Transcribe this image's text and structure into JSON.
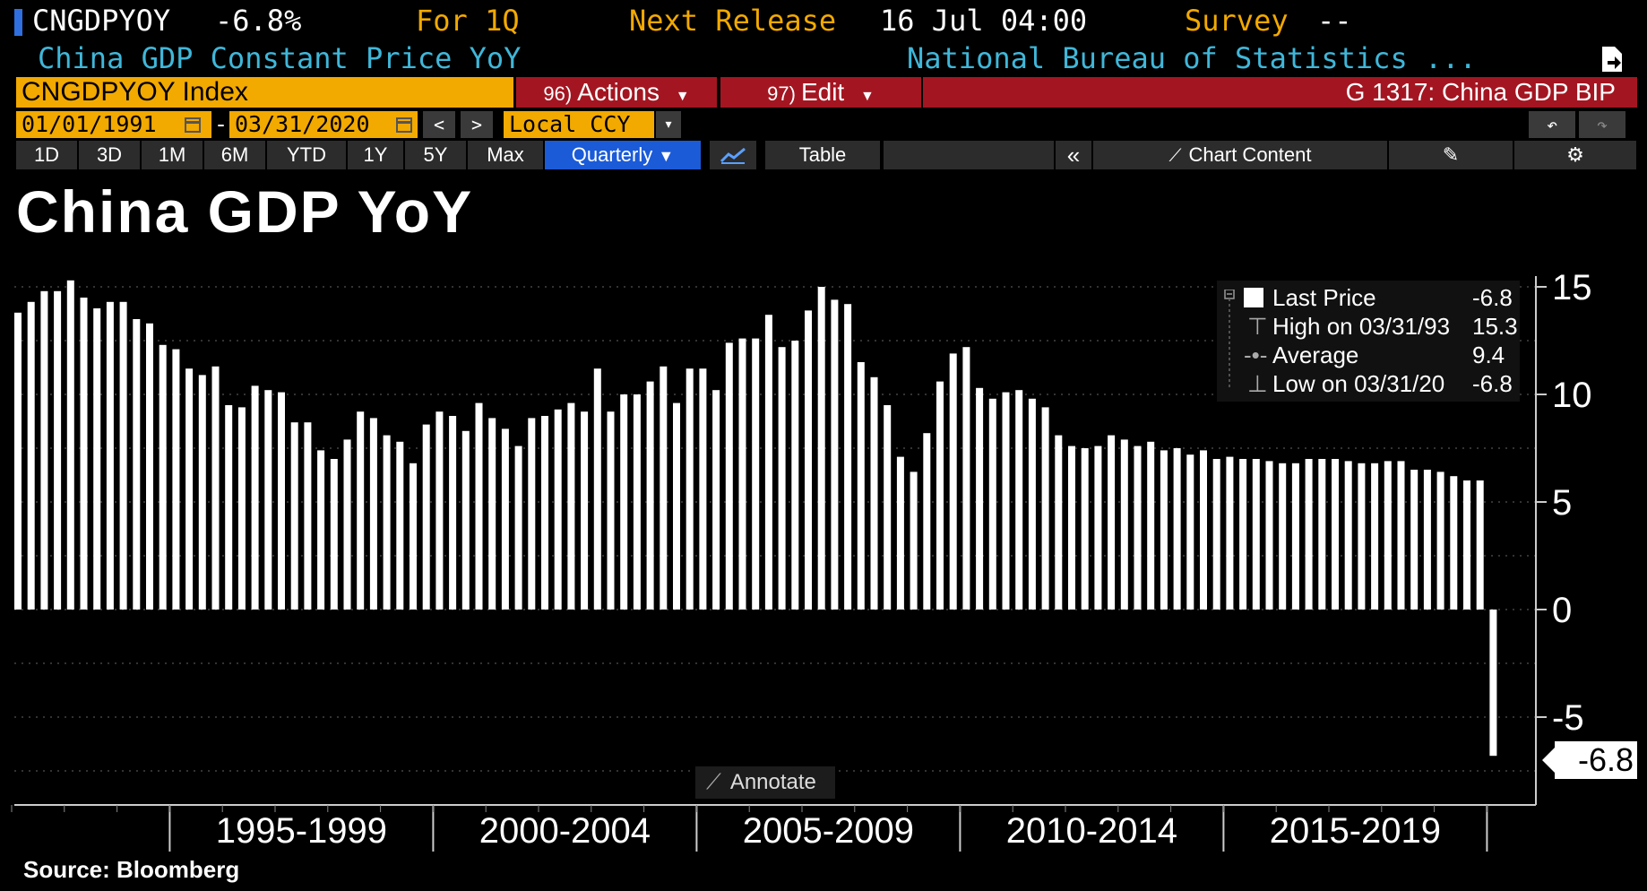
{
  "header": {
    "ticker": "CNGDPYOY",
    "last_value": "-6.8%",
    "period": "For 1Q",
    "next_release_label": "Next Release",
    "next_release": "16 Jul 04:00",
    "survey_label": "Survey",
    "survey_value": "--",
    "description": "China GDP Constant Price YoY",
    "source_org": "National Bureau of Statistics ..."
  },
  "toolbar": {
    "security": "CNGDPYOY Index",
    "actions_num": "96)",
    "actions_label": "Actions",
    "edit_num": "97)",
    "edit_label": "Edit",
    "chart_id": "G 1317: China GDP BIP",
    "date_from": "01/01/1991",
    "date_sep": "-",
    "date_to": "03/31/2020",
    "currency": "Local CCY"
  },
  "tabs": [
    {
      "label": "1D"
    },
    {
      "label": "3D"
    },
    {
      "label": "1M"
    },
    {
      "label": "6M"
    },
    {
      "label": "YTD"
    },
    {
      "label": "1Y"
    },
    {
      "label": "5Y"
    },
    {
      "label": "Max"
    },
    {
      "label": "Quarterly"
    }
  ],
  "tab_table": "Table",
  "tab_chart_content": "Chart Content",
  "legend": {
    "last_label": "Last Price",
    "last_value": "-6.8",
    "high_label": "High on 03/31/93",
    "high_value": "15.3",
    "avg_label": "Average",
    "avg_value": "9.4",
    "low_label": "Low on 03/31/20",
    "low_value": "-6.8"
  },
  "annotate_label": "Annotate",
  "last_value_label": "-6.8",
  "source": "Source: Bloomberg",
  "colors": {
    "accent": "#f2a900",
    "red": "#a31621",
    "active_tab": "#1b5bd8",
    "bar": "#ffffff",
    "cyan_text": "#3fb7d9",
    "orange_text": "#f2a900"
  },
  "chart_data": {
    "type": "bar",
    "title": "China GDP YoY",
    "x_group_labels": [
      "1995-1999",
      "2000-2004",
      "2005-2009",
      "2010-2014",
      "2015-2019"
    ],
    "y_ticks": [
      15,
      10,
      5,
      0,
      -5
    ],
    "ylim": [
      -9,
      16
    ],
    "start_quarter": "1992Q1",
    "end_quarter": "2020Q1",
    "values": [
      13.8,
      14.3,
      14.8,
      14.8,
      15.3,
      14.5,
      14.0,
      14.3,
      14.3,
      13.5,
      13.3,
      12.3,
      12.1,
      11.2,
      10.9,
      11.3,
      9.5,
      9.4,
      10.4,
      10.2,
      10.1,
      8.7,
      8.7,
      7.4,
      7.0,
      7.9,
      9.2,
      8.9,
      8.1,
      7.8,
      6.8,
      8.6,
      9.2,
      9.0,
      8.3,
      9.6,
      8.9,
      8.4,
      7.6,
      8.9,
      9.0,
      9.3,
      9.6,
      9.2,
      11.2,
      9.2,
      10.0,
      10.0,
      10.6,
      11.3,
      9.6,
      11.2,
      11.2,
      10.2,
      12.4,
      12.6,
      12.6,
      13.7,
      12.2,
      12.5,
      13.9,
      15.0,
      14.4,
      14.2,
      11.5,
      10.8,
      9.5,
      7.1,
      6.4,
      8.2,
      10.6,
      11.9,
      12.2,
      10.3,
      9.8,
      10.1,
      10.2,
      9.8,
      9.4,
      8.1,
      7.6,
      7.5,
      7.6,
      8.1,
      7.9,
      7.6,
      7.8,
      7.4,
      7.5,
      7.2,
      7.4,
      7.0,
      7.1,
      7.0,
      7.0,
      6.9,
      6.8,
      6.8,
      7.0,
      7.0,
      7.0,
      6.9,
      6.8,
      6.8,
      6.9,
      6.9,
      6.5,
      6.5,
      6.4,
      6.2,
      6.0,
      6.0,
      -6.8
    ]
  }
}
